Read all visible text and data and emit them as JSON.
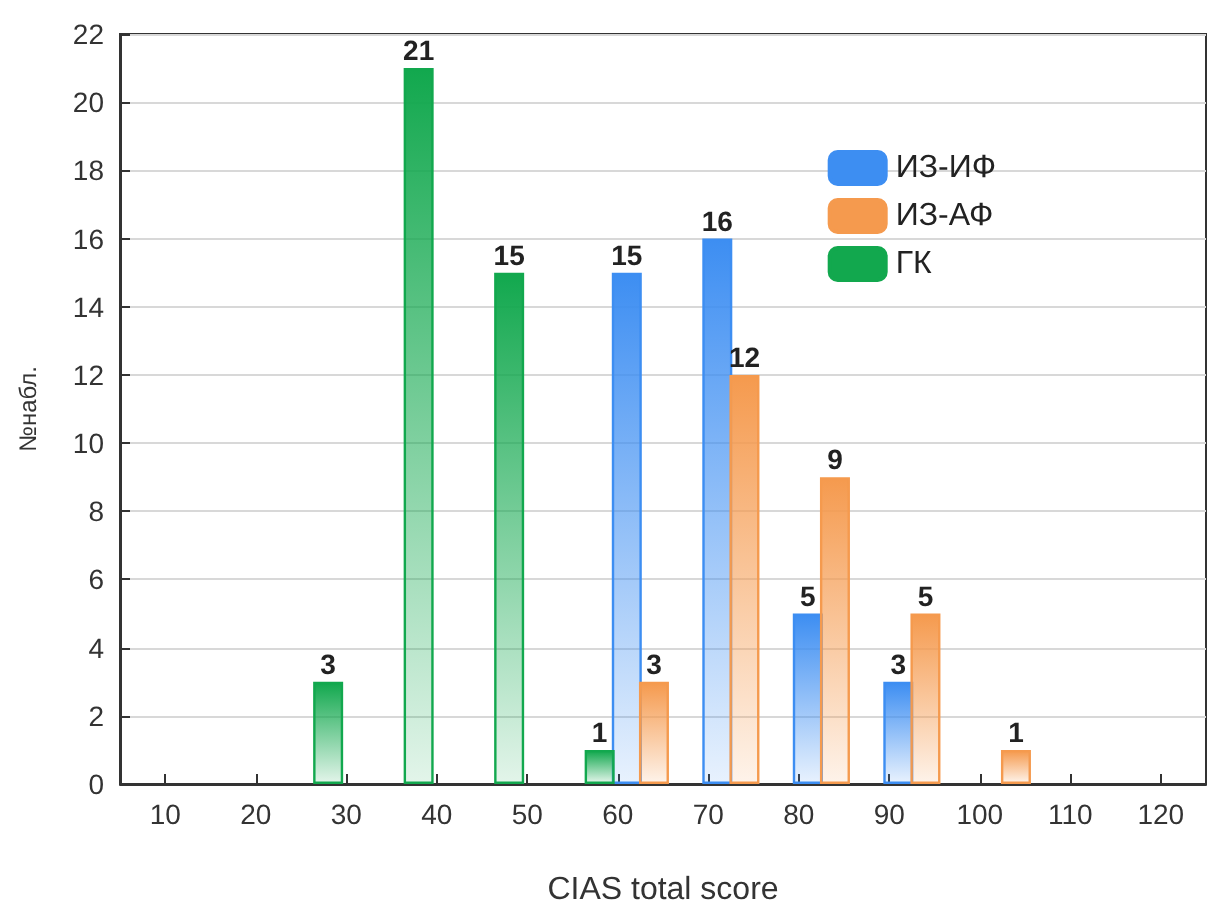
{
  "chart_data": {
    "type": "bar",
    "xlabel": "CIAS total score",
    "ylabel": "№набл.",
    "xlim": [
      5,
      125
    ],
    "xticks": [
      10,
      20,
      30,
      40,
      50,
      60,
      70,
      80,
      90,
      100,
      110,
      120
    ],
    "ylim": [
      0,
      22
    ],
    "yticks": [
      0,
      2,
      4,
      6,
      8,
      10,
      12,
      14,
      16,
      18,
      20,
      22
    ],
    "series": [
      {
        "name": "ИЗ-ИФ",
        "color": "#3d8ef2",
        "x": [
          61,
          71,
          81,
          91
        ],
        "values": [
          15,
          16,
          5,
          3
        ]
      },
      {
        "name": "ИЗ-АФ",
        "color": "#f59a4e",
        "x": [
          64,
          74,
          84,
          94,
          104
        ],
        "values": [
          3,
          12,
          9,
          5,
          1
        ]
      },
      {
        "name": "ГК",
        "color": "#12a84e",
        "x": [
          28,
          38,
          48,
          58
        ],
        "values": [
          3,
          21,
          15,
          1
        ]
      }
    ],
    "data_labels": true,
    "grid": "y",
    "legend": "top right"
  }
}
